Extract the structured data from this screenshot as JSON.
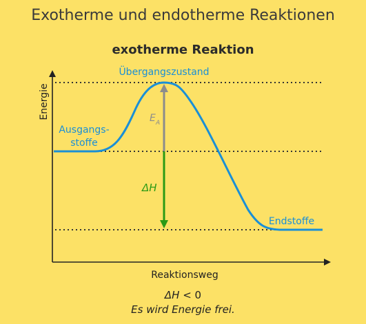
{
  "title": "Exotherme und endotherme Reaktionen",
  "subtitle": "exotherme Reaktion",
  "axes": {
    "y_label": "Energie",
    "x_label": "Reaktionsweg"
  },
  "labels": {
    "transition_state": "Übergangszustand",
    "reactants_line1": "Ausgangs-",
    "reactants_line2": "stoffe",
    "products": "Endstoffe",
    "activation_symbol": "E",
    "activation_subscript": "A",
    "enthalpy_symbol": "ΔH"
  },
  "caption": {
    "formula_symbol": "ΔH",
    "formula_relation": " < 0",
    "note": "Es wird Energie frei."
  },
  "colors": {
    "background": "#fce166",
    "curve": "#1a8fd6",
    "activation_arrow": "#8c8c8c",
    "enthalpy_arrow": "#2a9a15",
    "axis": "#222222",
    "guide_lines": "#333333"
  }
}
